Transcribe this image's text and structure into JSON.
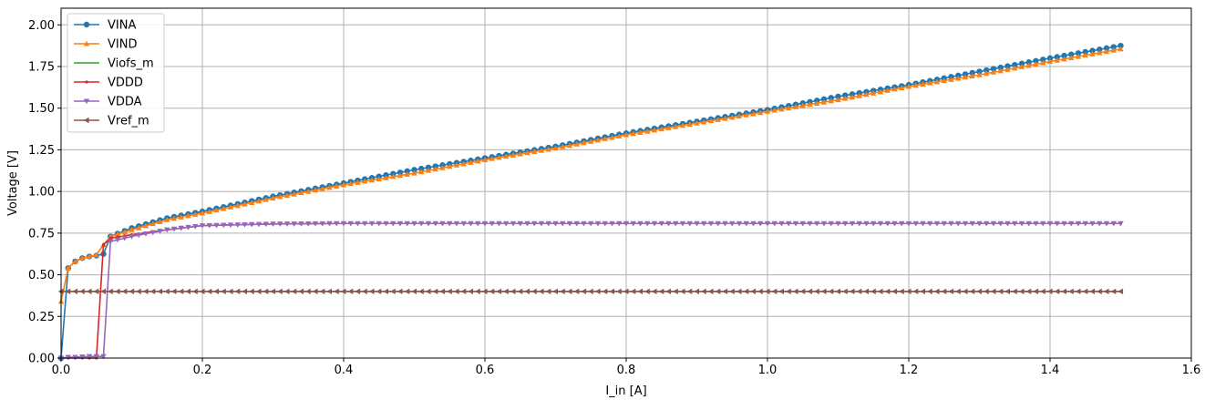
{
  "chart_data": {
    "type": "line",
    "title": "",
    "xlabel": "I_in [A]",
    "ylabel": "Voltage [V]",
    "xlim": [
      0.0,
      1.6
    ],
    "ylim": [
      0.0,
      2.1
    ],
    "xticks": [
      0.0,
      0.2,
      0.4,
      0.6,
      0.8,
      1.0,
      1.2,
      1.4,
      1.6
    ],
    "xtick_labels": [
      "0.0",
      "0.2",
      "0.4",
      "0.6",
      "0.8",
      "1.0",
      "1.2",
      "1.4",
      "1.6"
    ],
    "yticks": [
      0.0,
      0.25,
      0.5,
      0.75,
      1.0,
      1.25,
      1.5,
      1.75,
      2.0
    ],
    "ytick_labels": [
      "0.00",
      "0.25",
      "0.50",
      "0.75",
      "1.00",
      "1.25",
      "1.50",
      "1.75",
      "2.00"
    ],
    "grid": true,
    "legend_position": "upper-left",
    "series": [
      {
        "name": "VINA",
        "color": "#1f77b4",
        "marker": "circle",
        "x": [
          0.0,
          0.01,
          0.02,
          0.03,
          0.04,
          0.05,
          0.06,
          0.07,
          0.1,
          0.15,
          0.2,
          0.3,
          0.4,
          0.5,
          0.6,
          0.7,
          0.8,
          0.9,
          1.0,
          1.1,
          1.2,
          1.3,
          1.4,
          1.5
        ],
        "y": [
          0.0,
          0.54,
          0.58,
          0.6,
          0.61,
          0.615,
          0.625,
          0.73,
          0.78,
          0.84,
          0.88,
          0.97,
          1.05,
          1.13,
          1.2,
          1.27,
          1.35,
          1.42,
          1.49,
          1.57,
          1.64,
          1.72,
          1.8,
          1.875
        ]
      },
      {
        "name": "VIND",
        "color": "#ff7f0e",
        "marker": "triangle-up",
        "x": [
          0.0,
          0.01,
          0.02,
          0.03,
          0.04,
          0.05,
          0.06,
          0.07,
          0.1,
          0.15,
          0.2,
          0.3,
          0.4,
          0.5,
          0.6,
          0.7,
          0.8,
          0.9,
          1.0,
          1.1,
          1.2,
          1.3,
          1.4,
          1.5
        ],
        "y": [
          0.34,
          0.54,
          0.58,
          0.6,
          0.61,
          0.62,
          0.68,
          0.73,
          0.77,
          0.83,
          0.87,
          0.96,
          1.04,
          1.11,
          1.19,
          1.26,
          1.34,
          1.41,
          1.48,
          1.55,
          1.63,
          1.7,
          1.78,
          1.855
        ]
      },
      {
        "name": "Viofs_m",
        "color": "#2ca02c",
        "marker": "none",
        "x": [
          0.0,
          1.5
        ],
        "y": [
          0.4,
          0.4
        ]
      },
      {
        "name": "VDDD",
        "color": "#d62728",
        "marker": "point",
        "x": [
          0.0,
          0.01,
          0.02,
          0.03,
          0.04,
          0.05,
          0.06,
          0.07,
          0.1,
          0.15,
          0.2,
          0.3,
          0.4,
          0.5,
          0.6,
          0.8,
          1.0,
          1.2,
          1.5
        ],
        "y": [
          0.0,
          0.0,
          0.0,
          0.0,
          0.0,
          0.0,
          0.68,
          0.72,
          0.74,
          0.77,
          0.795,
          0.805,
          0.808,
          0.808,
          0.808,
          0.808,
          0.808,
          0.808,
          0.808
        ]
      },
      {
        "name": "VDDA",
        "color": "#9467bd",
        "marker": "triangle-down",
        "x": [
          0.0,
          0.01,
          0.02,
          0.03,
          0.04,
          0.05,
          0.06,
          0.07,
          0.1,
          0.15,
          0.2,
          0.3,
          0.4,
          0.5,
          0.6,
          0.8,
          1.0,
          1.2,
          1.5
        ],
        "y": [
          0.0,
          0.005,
          0.005,
          0.008,
          0.01,
          0.01,
          0.01,
          0.7,
          0.73,
          0.77,
          0.795,
          0.805,
          0.808,
          0.808,
          0.808,
          0.808,
          0.808,
          0.808,
          0.808
        ]
      },
      {
        "name": "Vref_m",
        "color": "#8c564b",
        "marker": "triangle-left",
        "x": [
          0.0,
          1.5
        ],
        "y": [
          0.4,
          0.4
        ]
      }
    ]
  }
}
